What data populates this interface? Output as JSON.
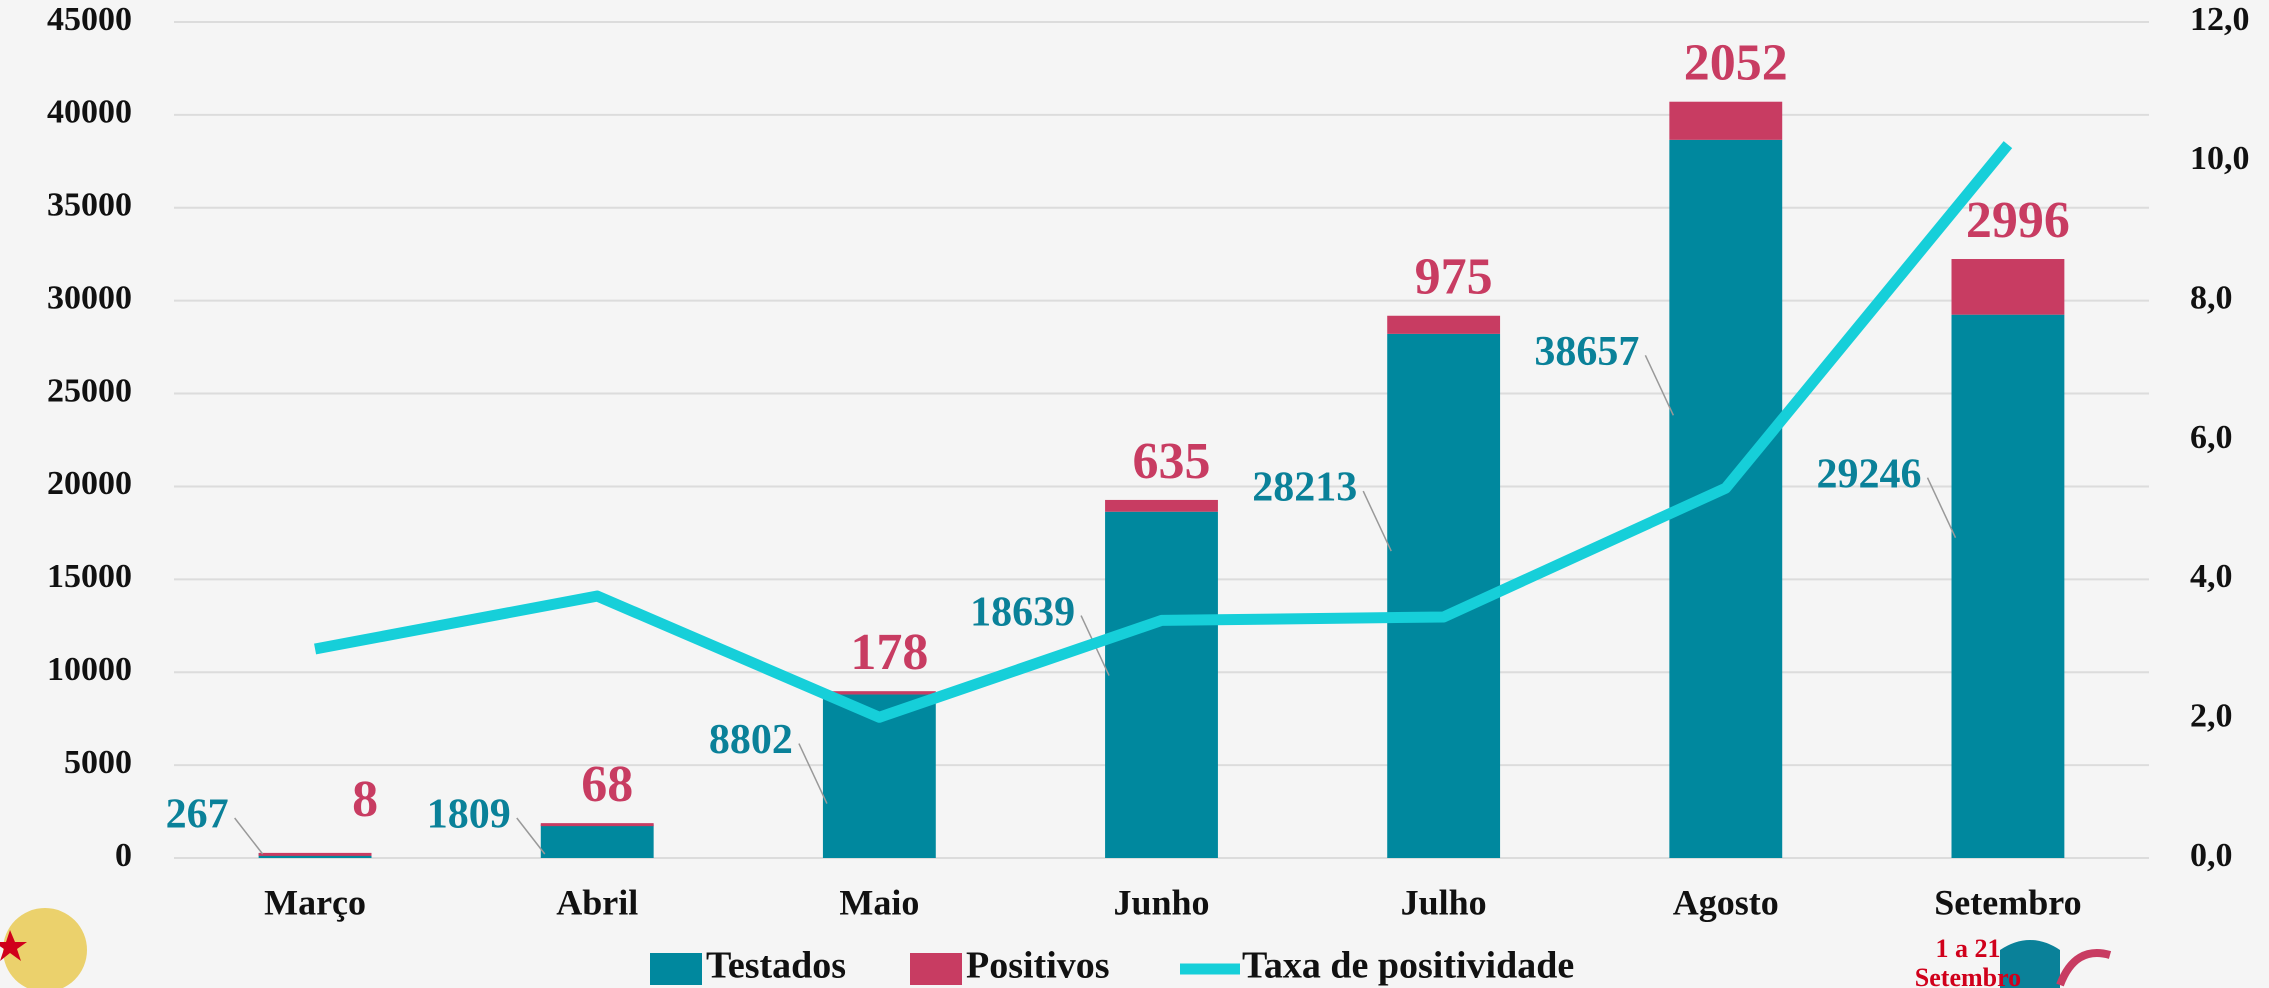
{
  "chart_data": {
    "type": "stacked_bar_line",
    "categories": [
      "Março",
      "Abril",
      "Maio",
      "Junho",
      "Julho",
      "Agosto",
      "Setembro"
    ],
    "series": [
      {
        "name": "Testados",
        "color": "#00889e",
        "values": [
          267,
          1809,
          8802,
          18639,
          28213,
          38657,
          29246
        ]
      },
      {
        "name": "Positivos",
        "color": "#c83c62",
        "values": [
          8,
          68,
          178,
          635,
          975,
          2052,
          2996
        ]
      },
      {
        "name": "Taxa de positividade",
        "color": "#16cfd9",
        "axis": "y2",
        "values": [
          3.0,
          3.76,
          2.02,
          3.41,
          3.46,
          5.31,
          10.24
        ]
      }
    ],
    "ylim": [
      0,
      45000
    ],
    "yticks": [
      0,
      5000,
      10000,
      15000,
      20000,
      25000,
      30000,
      35000,
      40000,
      45000
    ],
    "y2lim": [
      0,
      12
    ],
    "y2ticks": [
      {
        "value": 0,
        "label": "0,0"
      },
      {
        "value": 2,
        "label": "2,0"
      },
      {
        "value": 4,
        "label": "4,0"
      },
      {
        "value": 6,
        "label": "6,0"
      },
      {
        "value": 8,
        "label": "8,0"
      },
      {
        "value": 10,
        "label": "10,0"
      },
      {
        "value": 12,
        "label": "12,0"
      }
    ],
    "grid": true,
    "annotations": [
      "1 a 21",
      "Setembro"
    ]
  }
}
